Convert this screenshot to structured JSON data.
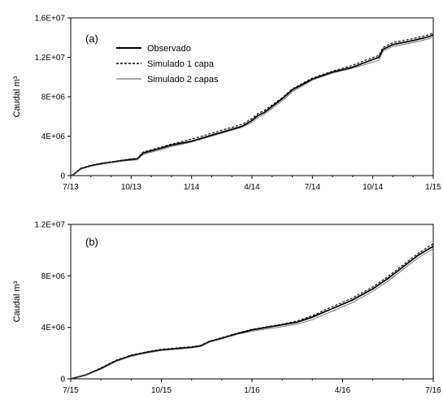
{
  "chart_data": [
    {
      "type": "line",
      "panel_label": "(a)",
      "ylabel": "Caudal m³",
      "ylim": [
        0,
        16000000
      ],
      "y_ticks": [
        {
          "value": 0,
          "label": "0"
        },
        {
          "value": 4000000,
          "label": "4E+06"
        },
        {
          "value": 8000000,
          "label": "8E+06"
        },
        {
          "value": 12000000,
          "label": "1.2E+07"
        },
        {
          "value": 16000000,
          "label": "1.6E+07"
        }
      ],
      "x_ticks": [
        "7/13",
        "10/13",
        "1/14",
        "4/14",
        "7/14",
        "10/14",
        "1/15"
      ],
      "legend": {
        "placement": "top-left",
        "entries": [
          {
            "name": "Observado",
            "style": "solid-thick"
          },
          {
            "name": "Simulado 1 capa",
            "style": "dashed"
          },
          {
            "name": "Simulado 2 capas",
            "style": "solid-thin"
          }
        ]
      },
      "x_unit": "months since 7/13",
      "series": [
        {
          "name": "Observado",
          "style": "solid-thick",
          "x": [
            0,
            0.1,
            0.5,
            1,
            1.5,
            2,
            2.5,
            3,
            3.3,
            3.6,
            4.5,
            5,
            6,
            7,
            7.5,
            8,
            8.5,
            9,
            9.3,
            9.6,
            10.5,
            11,
            12,
            13,
            14,
            14.5,
            15.3,
            15.5,
            16,
            17,
            17.8,
            18
          ],
          "y": [
            0,
            50000,
            700000,
            1000000,
            1200000,
            1350000,
            1500000,
            1650000,
            1700000,
            2300000,
            2800000,
            3100000,
            3500000,
            4100000,
            4400000,
            4700000,
            5000000,
            5600000,
            6100000,
            6400000,
            7800000,
            8700000,
            9800000,
            10500000,
            11000000,
            11400000,
            12000000,
            12800000,
            13300000,
            13700000,
            14100000,
            14300000
          ]
        },
        {
          "name": "Simulado 1 capa",
          "style": "dashed",
          "x": [
            0,
            0.1,
            0.5,
            1,
            1.5,
            2,
            2.5,
            3,
            3.3,
            3.6,
            4.5,
            5,
            6,
            7,
            7.5,
            8,
            8.5,
            9,
            9.3,
            9.6,
            10.5,
            11,
            12,
            13,
            14,
            14.5,
            15.3,
            15.5,
            16,
            17,
            17.8,
            18
          ],
          "y": [
            0,
            60000,
            750000,
            1050000,
            1250000,
            1400000,
            1550000,
            1700000,
            1750000,
            2400000,
            2900000,
            3200000,
            3700000,
            4300000,
            4600000,
            4900000,
            5200000,
            5800000,
            6300000,
            6600000,
            7900000,
            8800000,
            9900000,
            10600000,
            11200000,
            11600000,
            12200000,
            13000000,
            13500000,
            13900000,
            14300000,
            14500000
          ]
        },
        {
          "name": "Simulado 2 capas",
          "style": "solid-thin",
          "x": [
            0,
            0.1,
            0.5,
            1,
            1.5,
            2,
            2.5,
            3,
            3.3,
            3.6,
            4.5,
            5,
            6,
            7,
            7.5,
            8,
            8.5,
            9,
            9.3,
            9.6,
            10.5,
            11,
            12,
            13,
            14,
            14.5,
            15.3,
            15.5,
            16,
            17,
            17.8,
            18
          ],
          "y": [
            0,
            40000,
            650000,
            950000,
            1150000,
            1300000,
            1450000,
            1550000,
            1600000,
            2150000,
            2650000,
            2950000,
            3400000,
            4000000,
            4300000,
            4600000,
            4900000,
            5400000,
            5900000,
            6200000,
            7600000,
            8500000,
            9700000,
            10400000,
            10900000,
            11200000,
            11700000,
            12600000,
            13100000,
            13500000,
            13900000,
            14100000
          ]
        }
      ]
    },
    {
      "type": "line",
      "panel_label": "(b)",
      "ylabel": "Caudal m³",
      "ylim": [
        0,
        12000000
      ],
      "y_ticks": [
        {
          "value": 0,
          "label": "0"
        },
        {
          "value": 4000000,
          "label": "4E+06"
        },
        {
          "value": 8000000,
          "label": "8E+06"
        },
        {
          "value": 12000000,
          "label": "1.2E+07"
        }
      ],
      "x_ticks": [
        "7/15",
        "10/15",
        "1/16",
        "4/16",
        "7/16"
      ],
      "x_unit": "months since 7/15",
      "series": [
        {
          "name": "Observado",
          "style": "solid-thick",
          "x": [
            0,
            0.5,
            1,
            1.5,
            2,
            2.5,
            3,
            3.5,
            4,
            4.3,
            4.6,
            5,
            5.5,
            6,
            7,
            7.5,
            8,
            8.5,
            9,
            9.3,
            10,
            10.5,
            11,
            11.5,
            12
          ],
          "y": [
            0,
            300000,
            800000,
            1400000,
            1800000,
            2050000,
            2250000,
            2350000,
            2450000,
            2550000,
            2900000,
            3150000,
            3500000,
            3800000,
            4200000,
            4400000,
            4800000,
            5300000,
            5800000,
            6100000,
            7000000,
            7800000,
            8700000,
            9600000,
            10300000
          ]
        },
        {
          "name": "Simulado 1 capa",
          "style": "dashed",
          "x": [
            0,
            0.5,
            1,
            1.5,
            2,
            2.5,
            3,
            3.5,
            4,
            4.3,
            4.6,
            5,
            5.5,
            6,
            7,
            7.5,
            8,
            8.5,
            9,
            9.3,
            10,
            10.5,
            11,
            11.5,
            12
          ],
          "y": [
            0,
            320000,
            850000,
            1450000,
            1850000,
            2100000,
            2300000,
            2400000,
            2500000,
            2600000,
            2950000,
            3200000,
            3550000,
            3850000,
            4250000,
            4500000,
            4900000,
            5450000,
            5950000,
            6250000,
            7150000,
            7950000,
            8850000,
            9750000,
            10500000
          ]
        },
        {
          "name": "Simulado 2 capas",
          "style": "solid-thin",
          "x": [
            0,
            0.5,
            1,
            1.5,
            2,
            2.5,
            3,
            3.5,
            4,
            4.3,
            4.6,
            5,
            5.5,
            6,
            7,
            7.5,
            8,
            8.5,
            9,
            9.3,
            10,
            10.5,
            11,
            11.5,
            12
          ],
          "y": [
            0,
            280000,
            750000,
            1350000,
            1750000,
            2000000,
            2200000,
            2300000,
            2400000,
            2500000,
            2850000,
            3100000,
            3450000,
            3700000,
            4050000,
            4250000,
            4600000,
            5100000,
            5600000,
            5900000,
            6800000,
            7600000,
            8500000,
            9400000,
            10100000
          ]
        }
      ]
    }
  ]
}
